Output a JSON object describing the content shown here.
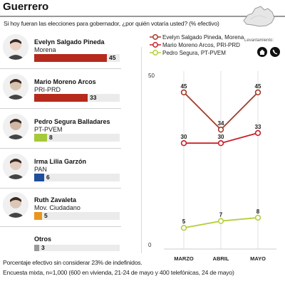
{
  "header": {
    "title": "Guerrero",
    "source_label": "Levantamiento:",
    "question": "Si hoy fueran las elecciones para gobernador, ¿por quién votaría usted? (% efectivo)"
  },
  "candidates": [
    {
      "name": "Evelyn Salgado Pineda",
      "party": "Morena",
      "value": 45,
      "value_label": "45",
      "color": "#b52a1c"
    },
    {
      "name": "Mario Moreno Arcos",
      "party": "PRI-PRD",
      "value": 33,
      "value_label": "33",
      "color": "#b52a1c"
    },
    {
      "name": "Pedro Segura Balladares",
      "party": "PT-PVEM",
      "value": 8,
      "value_label": "8",
      "color": "#a6c93a"
    },
    {
      "name": "Irma Lilia Garzón",
      "party": "PAN",
      "value": 6,
      "value_label": "6",
      "color": "#1f4e9c"
    },
    {
      "name": "Ruth Zavaleta",
      "party": "Mov. Ciudadano",
      "value": 5,
      "value_label": "5",
      "color": "#e8961e"
    }
  ],
  "others": {
    "name": "Otros",
    "value": 3,
    "value_label": "3",
    "color": "#9a9a9a"
  },
  "footer": {
    "line1": "Porcentaje efectivo sin considerar 23% de indefinidos.",
    "line2": "Encuesta mixta, n=1,000 (600 en vivienda, 21-24 de mayo y 400 telefónicas, 24 de mayo)"
  },
  "chart_data": {
    "type": "line",
    "categories": [
      "MARZO",
      "ABRIL",
      "MAYO"
    ],
    "ylim": [
      0,
      50
    ],
    "y_ticks": [
      "50",
      "0"
    ],
    "series": [
      {
        "name": "Evelyn Salgado Pineda, Morena",
        "values": [
          45,
          34,
          45
        ],
        "labels": [
          "45",
          "34",
          "45"
        ],
        "color": "#a23a2a"
      },
      {
        "name": "Mario Moreno Arcos, PRI-PRD",
        "values": [
          30,
          30,
          33
        ],
        "labels": [
          "30",
          "30",
          "33"
        ],
        "color": "#c8202a"
      },
      {
        "name": "Pedro Segura, PT-PVEM",
        "values": [
          5,
          7,
          8
        ],
        "labels": [
          "5",
          "7",
          "8"
        ],
        "color": "#b4cf3c"
      }
    ]
  }
}
